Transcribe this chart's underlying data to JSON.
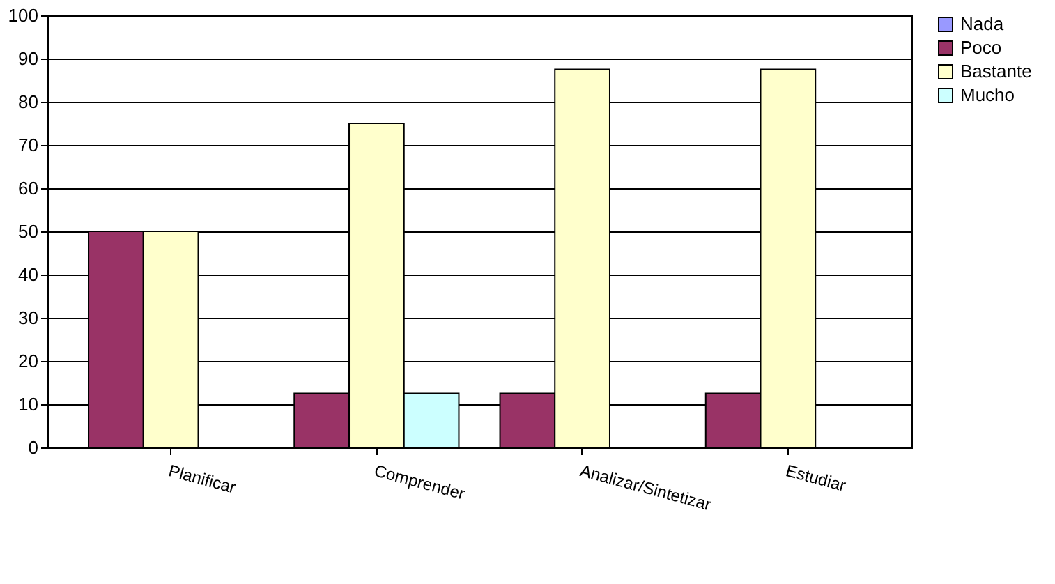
{
  "chart_data": {
    "type": "bar",
    "categories": [
      "Planificar",
      "Comprender",
      "Analizar/Sintetizar",
      "Estudiar"
    ],
    "series": [
      {
        "name": "Nada",
        "color": "#9999ff",
        "values": [
          null,
          null,
          null,
          null
        ]
      },
      {
        "name": "Poco",
        "color": "#993366",
        "values": [
          50,
          12.5,
          12.5,
          12.5
        ]
      },
      {
        "name": "Bastante",
        "color": "#ffffcc",
        "values": [
          50,
          75,
          87.5,
          87.5
        ]
      },
      {
        "name": "Mucho",
        "color": "#ccffff",
        "values": [
          null,
          12.5,
          null,
          null
        ]
      }
    ],
    "ylim": [
      0,
      100
    ],
    "yticks": [
      0,
      10,
      20,
      30,
      40,
      50,
      60,
      70,
      80,
      90,
      100
    ],
    "grid": "y",
    "legend": "right"
  }
}
